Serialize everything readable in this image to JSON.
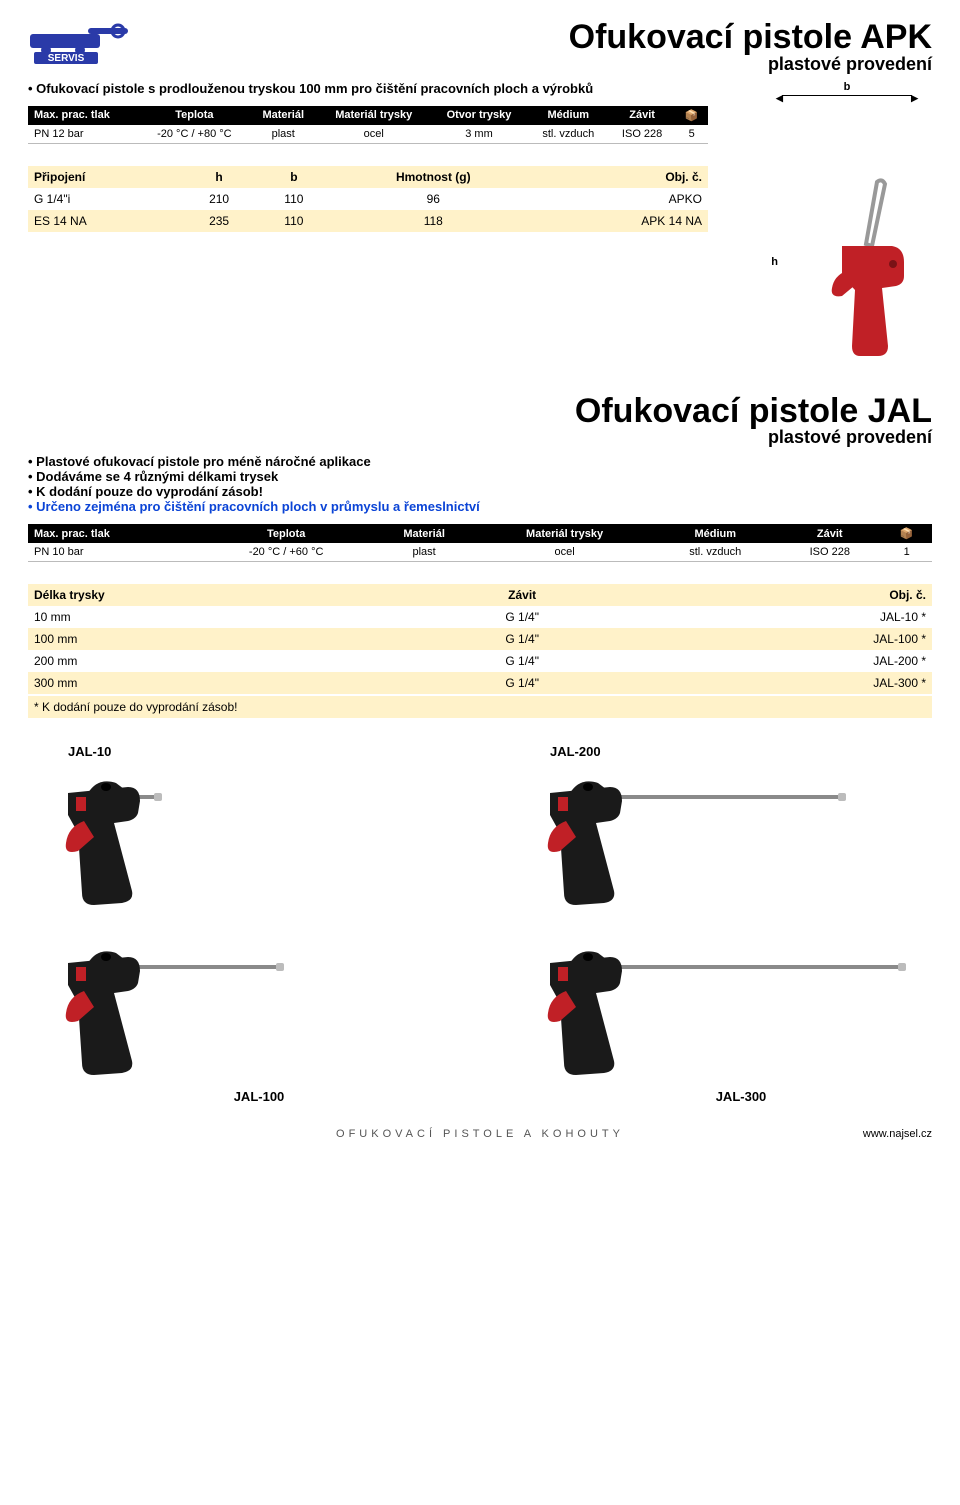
{
  "section1": {
    "title": "Ofukovací pistole APK",
    "subtitle": "plastové provedení",
    "bullets": [
      {
        "text": "Ofukovací pistole s prodlouženou tryskou 100 mm pro čištění pracovních ploch a výrobků",
        "blue": false
      }
    ],
    "dim_b": "b",
    "dim_h": "h",
    "spec": {
      "headers": [
        "Max. prac. tlak",
        "Teplota",
        "Materiál",
        "Materiál trysky",
        "Otvor trysky",
        "Médium",
        "Závit",
        "📦"
      ],
      "row": [
        "PN 12 bar",
        "-20 °C / +80 °C",
        "plast",
        "ocel",
        "3 mm",
        "stl. vzduch",
        "ISO 228",
        "5"
      ]
    },
    "data": {
      "headers": [
        "Připojení",
        "h",
        "b",
        "Hmotnost (g)",
        "Obj. č."
      ],
      "rows": [
        [
          "G 1/4\"i",
          "210",
          "110",
          "96",
          "APKO"
        ],
        [
          "ES 14 NA",
          "235",
          "110",
          "118",
          "APK 14 NA"
        ]
      ]
    },
    "red_gun_color": "#c02026"
  },
  "section2": {
    "title": "Ofukovací pistole JAL",
    "subtitle": "plastové provedení",
    "bullets": [
      {
        "text": "Plastové ofukovací pistole pro méně náročné aplikace",
        "blue": false
      },
      {
        "text": "Dodáváme se 4 různými délkami trysek",
        "blue": false
      },
      {
        "text": "K dodání pouze do vyprodání zásob!",
        "blue": false
      },
      {
        "text": "Určeno zejména pro čištění pracovních ploch v průmyslu a řemeslnictví",
        "blue": true
      }
    ],
    "spec": {
      "headers": [
        "Max. prac. tlak",
        "Teplota",
        "Materiál",
        "Materiál trysky",
        "Médium",
        "Závit",
        "📦"
      ],
      "row": [
        "PN 10 bar",
        "-20 °C / +60 °C",
        "plast",
        "ocel",
        "stl. vzduch",
        "ISO 228",
        "1"
      ]
    },
    "data": {
      "headers": [
        "Délka trysky",
        "Závit",
        "Obj. č."
      ],
      "rows": [
        [
          "10 mm",
          "G 1/4\"",
          "JAL-10 *"
        ],
        [
          "100 mm",
          "G 1/4\"",
          "JAL-100 *"
        ],
        [
          "200 mm",
          "G 1/4\"",
          "JAL-200 *"
        ],
        [
          "300 mm",
          "G 1/4\"",
          "JAL-300 *"
        ]
      ]
    },
    "note": "* K dodání pouze do vyprodání zásob!",
    "images": {
      "tl": "JAL-10",
      "tr": "JAL-200",
      "bl": "JAL-100",
      "br": "JAL-300"
    }
  },
  "footer": {
    "category": "OFUKOVACÍ PISTOLE A KOHOUTY",
    "url": "www.najsel.cz"
  },
  "logo_text": "SERVIS",
  "colors": {
    "header_bg": "#000000",
    "band": "#fff2c9",
    "blue": "#0b44d6",
    "grip_black": "#1a1a1a",
    "trigger_red": "#c02026",
    "barrel": "#8a8a8a",
    "logo_blue": "#2a3aa8"
  }
}
